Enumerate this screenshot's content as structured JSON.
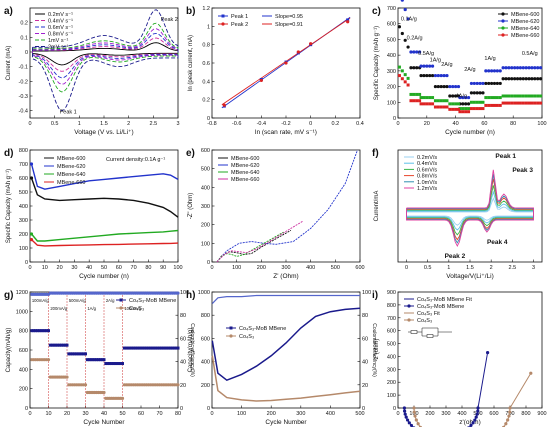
{
  "chart_data": [
    {
      "panel": "a)",
      "type": "line",
      "xlabel": "Voltage (V vs. Li/Li⁺)",
      "ylabel": "Current (mA)",
      "xlim": [
        0.0,
        3.0
      ],
      "ylim": [
        -0.45,
        0.3
      ],
      "xticks": [
        0.0,
        0.5,
        1.0,
        1.5,
        2.0,
        2.5,
        3.0
      ],
      "yticks": [
        -0.4,
        -0.3,
        -0.2,
        -0.1,
        0.0,
        0.1,
        0.2
      ],
      "legend_position": "top-left",
      "annotations": [
        "Peak 2",
        "Peak 1"
      ],
      "series": [
        {
          "name": "0.2mV s⁻¹",
          "color": "#000000",
          "dash": "0",
          "scale": 0.22
        },
        {
          "name": "0.4mV s⁻¹",
          "color": "#cc2fa0",
          "dash": "4 2",
          "scale": 0.33
        },
        {
          "name": "0.6mV s⁻¹",
          "color": "#2233cc",
          "dash": "4 2",
          "scale": 0.44
        },
        {
          "name": "0.8mV s⁻¹",
          "color": "#a020d0",
          "dash": "4 2",
          "scale": 0.55
        },
        {
          "name": "1mV s⁻¹",
          "color": "#22aa22",
          "dash": "4 2",
          "scale": 0.68
        },
        {
          "name": "2mV s⁻¹",
          "color": "#1a1a8c",
          "dash": "4 2",
          "scale": 1.0
        }
      ]
    },
    {
      "panel": "b)",
      "type": "scatter",
      "xlabel": "ln (scan rate, mV s⁻¹)",
      "ylabel": "ln (peak current, mA)",
      "xlim": [
        -0.8,
        0.4
      ],
      "ylim": [
        0.0,
        1.2
      ],
      "xticks": [
        -0.8,
        -0.6,
        -0.4,
        -0.2,
        0.0,
        0.2,
        0.4
      ],
      "yticks": [
        0.0,
        0.2,
        0.4,
        0.6,
        0.8,
        1.0,
        1.2
      ],
      "legend_position": "top-left",
      "x": [
        -0.7,
        -0.4,
        -0.2,
        -0.1,
        0.0,
        0.3
      ],
      "series": [
        {
          "name": "Peak 1",
          "color": "#2233cc",
          "values": [
            0.13,
            0.42,
            0.61,
            0.71,
            0.8,
            1.07
          ]
        },
        {
          "name": "Peak 2",
          "color": "#dd2222",
          "values": [
            0.14,
            0.41,
            0.6,
            0.72,
            0.81,
            1.05
          ]
        }
      ],
      "fits": [
        {
          "name": "Slope=0.95",
          "color": "#2233cc",
          "slope": 0.95,
          "intercept": 0.795
        },
        {
          "name": "Slope=0.91",
          "color": "#dd2222",
          "slope": 0.91,
          "intercept": 0.8
        }
      ]
    },
    {
      "panel": "c)",
      "type": "scatter",
      "xlabel": "Cycle number (n)",
      "ylabel": "Specific Capacity (mAh g⁻¹)",
      "xlim": [
        0,
        100
      ],
      "ylim": [
        0,
        700
      ],
      "xticks": [
        0,
        20,
        40,
        60,
        80,
        100
      ],
      "yticks": [
        0,
        100,
        200,
        300,
        400,
        500,
        600,
        700
      ],
      "legend_position": "top-right",
      "annotations": [
        "0.1A/g",
        "0.2A/g",
        "0.5A/g",
        "1A/g",
        "2A/g",
        "4A/g",
        "2A/g",
        "1A/g",
        "0.5A/g"
      ],
      "segments_cycles": [
        [
          1,
          8
        ],
        [
          9,
          15
        ],
        [
          16,
          25
        ],
        [
          26,
          35
        ],
        [
          36,
          42
        ],
        [
          43,
          50
        ],
        [
          51,
          60
        ],
        [
          61,
          72
        ],
        [
          73,
          100
        ]
      ],
      "series": [
        {
          "name": "MBene-600",
          "color": "#111111",
          "values": [
            430,
            320,
            270,
            200,
            140,
            90,
            160,
            220,
            250
          ]
        },
        {
          "name": "MBene-620",
          "color": "#2233cc",
          "values": [
            600,
            420,
            330,
            270,
            200,
            130,
            220,
            300,
            320
          ]
        },
        {
          "name": "MBene-640",
          "color": "#22aa22",
          "values": [
            240,
            150,
            130,
            110,
            90,
            60,
            100,
            130,
            140
          ]
        },
        {
          "name": "MBene-660",
          "color": "#dd2222",
          "values": [
            200,
            110,
            90,
            70,
            55,
            40,
            60,
            80,
            95
          ]
        }
      ]
    },
    {
      "panel": "d)",
      "type": "line",
      "xlabel": "Cycle number (n)",
      "ylabel": "Specific Capacity (mAh g⁻¹)",
      "xlim": [
        0,
        100
      ],
      "ylim": [
        0,
        800
      ],
      "xticks": [
        0,
        10,
        20,
        30,
        40,
        50,
        60,
        70,
        80,
        90,
        100
      ],
      "yticks": [
        0,
        100,
        200,
        300,
        400,
        500,
        600,
        700,
        800
      ],
      "legend_position": "top-left",
      "annotations": [
        "Current density:0.1A g⁻¹"
      ],
      "x": [
        1,
        5,
        10,
        20,
        30,
        40,
        50,
        60,
        70,
        80,
        90,
        95,
        100
      ],
      "series": [
        {
          "name": "MBene-600",
          "color": "#111111",
          "values": [
            600,
            480,
            450,
            440,
            445,
            450,
            455,
            450,
            440,
            420,
            390,
            360,
            320
          ]
        },
        {
          "name": "MBene-620",
          "color": "#2233cc",
          "values": [
            700,
            540,
            520,
            540,
            560,
            580,
            590,
            600,
            610,
            620,
            630,
            620,
            590
          ]
        },
        {
          "name": "MBene-640",
          "color": "#22aa22",
          "values": [
            200,
            150,
            150,
            160,
            170,
            180,
            190,
            200,
            205,
            210,
            215,
            220,
            225
          ]
        },
        {
          "name": "MBene-660",
          "color": "#dd2222",
          "values": [
            160,
            120,
            115,
            118,
            120,
            122,
            124,
            126,
            128,
            130,
            132,
            133,
            135
          ]
        }
      ]
    },
    {
      "panel": "e)",
      "type": "line",
      "xlabel": "Z' (Ohm)",
      "ylabel": "-Z\" (Ohm)",
      "xlim": [
        0,
        600
      ],
      "ylim": [
        0,
        600
      ],
      "xticks": [
        0,
        100,
        200,
        300,
        400,
        500,
        600
      ],
      "yticks": [
        0,
        100,
        200,
        300,
        400,
        500,
        600
      ],
      "legend_position": "top-left",
      "series": [
        {
          "name": "MBene-600",
          "color": "#111111",
          "x": [
            20,
            40,
            70,
            100,
            130,
            160,
            200,
            240,
            280,
            320
          ],
          "values": [
            0,
            35,
            55,
            50,
            40,
            45,
            80,
            110,
            140,
            170
          ]
        },
        {
          "name": "MBene-620",
          "color": "#2233cc",
          "x": [
            20,
            60,
            110,
            160,
            210,
            260,
            330,
            400,
            470,
            540,
            590
          ],
          "values": [
            0,
            60,
            100,
            110,
            100,
            95,
            110,
            180,
            280,
            420,
            600
          ]
        },
        {
          "name": "MBene-640",
          "color": "#22aa22",
          "x": [
            20,
            40,
            60,
            80,
            100,
            130,
            170,
            210,
            250,
            290
          ],
          "values": [
            0,
            30,
            45,
            40,
            30,
            40,
            70,
            100,
            130,
            160
          ]
        },
        {
          "name": "MBene-660",
          "color": "#cc2fa0",
          "x": [
            20,
            50,
            80,
            110,
            140,
            180,
            220,
            270,
            320,
            370
          ],
          "values": [
            0,
            40,
            60,
            55,
            50,
            70,
            100,
            140,
            180,
            220
          ]
        }
      ]
    },
    {
      "panel": "f)",
      "type": "line",
      "xlabel": "Voltage/V(Li⁺/Li)",
      "ylabel": "Current/mA",
      "xlim": [
        -0.2,
        3.2
      ],
      "xticks": [
        0.0,
        0.5,
        1.0,
        1.5,
        2.0,
        2.5,
        3.0
      ],
      "legend_position": "top-left",
      "annotations": [
        "Peak 1",
        "Peak 3",
        "Peak 4",
        "Peak 2"
      ],
      "series": [
        {
          "name": "0.2mV/s",
          "color": "#9bd0f0",
          "scale": 0.35
        },
        {
          "name": "0.4mV/s",
          "color": "#5ec2e8",
          "scale": 0.5
        },
        {
          "name": "0.6mV/s",
          "color": "#39b54a",
          "scale": 0.65
        },
        {
          "name": "0.8mV/s",
          "color": "#e8452a",
          "scale": 0.8
        },
        {
          "name": "1.0mV/s",
          "color": "#2f8fb0",
          "scale": 0.9
        },
        {
          "name": "1.2mV/s",
          "color": "#e040a0",
          "scale": 1.0
        }
      ]
    },
    {
      "panel": "g)",
      "type": "scatter",
      "xlabel": "Cycle Number",
      "ylabel": "Capacity(mAh/g)",
      "y2label": "Coulombic efficiency(%)",
      "xlim": [
        0,
        80
      ],
      "ylim": [
        0,
        1200
      ],
      "y2lim": [
        0,
        100
      ],
      "xticks": [
        0,
        10,
        20,
        30,
        40,
        50,
        60,
        70,
        80
      ],
      "yticks": [
        0,
        200,
        400,
        600,
        800,
        1000,
        1200
      ],
      "y2ticks": [
        0,
        20,
        40,
        60,
        80,
        100
      ],
      "legend_position": "top-right",
      "annotations": [
        "100mA/g",
        "200mA/g",
        "500mA/g",
        "1A/g",
        "2A/g",
        "100mA/g"
      ],
      "segments_cycles": [
        [
          1,
          10
        ],
        [
          11,
          20
        ],
        [
          21,
          30
        ],
        [
          31,
          40
        ],
        [
          41,
          50
        ],
        [
          51,
          80
        ]
      ],
      "series": [
        {
          "name": "Co₄S₃-MoB MBene",
          "color": "#1a1a8c",
          "values": [
            800,
            650,
            560,
            500,
            460,
            620
          ]
        },
        {
          "name": "Co₄S₃",
          "color": "#b5896a",
          "values": [
            500,
            320,
            240,
            160,
            100,
            240
          ]
        },
        {
          "name": "Coulombic efficiency",
          "color": "#5566cc",
          "values": [
            98,
            99,
            99,
            99,
            99,
            99
          ]
        }
      ]
    },
    {
      "panel": "h)",
      "type": "line",
      "xlabel": "Cycle Number",
      "ylabel": "Capacity(mAh/g)",
      "y2label": "Coulombic efficiency(%)",
      "xlim": [
        0,
        500
      ],
      "ylim": [
        0,
        1000
      ],
      "y2lim": [
        0,
        100
      ],
      "xticks": [
        0,
        100,
        200,
        300,
        400,
        500
      ],
      "yticks": [
        0,
        200,
        400,
        600,
        800,
        1000
      ],
      "y2ticks": [
        0,
        20,
        40,
        60,
        80,
        100
      ],
      "legend_position": "center",
      "x": [
        1,
        20,
        50,
        100,
        150,
        200,
        250,
        300,
        350,
        400,
        450,
        500
      ],
      "series": [
        {
          "name": "Co₄S₃-MoB MBene",
          "color": "#1a1a8c",
          "values": [
            580,
            300,
            240,
            290,
            360,
            450,
            560,
            690,
            790,
            830,
            850,
            860
          ]
        },
        {
          "name": "Co₄S₃",
          "color": "#b5896a",
          "values": [
            450,
            150,
            90,
            70,
            60,
            65,
            75,
            85,
            100,
            115,
            130,
            145
          ]
        },
        {
          "name": "Coulombic efficiency",
          "color": "#5566cc",
          "values": [
            90,
            95,
            96,
            96,
            97,
            97,
            97,
            97,
            97,
            97,
            97,
            97
          ]
        }
      ]
    },
    {
      "panel": "i)",
      "type": "line",
      "xlabel": "z'(ohm)",
      "ylabel": "-z\"(ohm)",
      "xlim": [
        0,
        900
      ],
      "ylim": [
        0,
        900
      ],
      "xticks": [
        0,
        100,
        200,
        300,
        400,
        500,
        600,
        700,
        800,
        900
      ],
      "yticks": [
        0,
        100,
        200,
        300,
        400,
        500,
        600,
        700,
        800,
        900
      ],
      "legend_position": "top-left",
      "series": [
        {
          "name": "Co₄S₃-MoB MBene Fit",
          "color": "#1a1a8c",
          "line": true
        },
        {
          "name": "Co₄S₃-MoB MBene",
          "color": "#1a1a8c",
          "marker": true
        },
        {
          "name": "Co₄S₃ Fit",
          "color": "#b5896a",
          "line": true
        },
        {
          "name": "Co₄S₃",
          "color": "#b5896a",
          "marker": true
        }
      ]
    }
  ]
}
